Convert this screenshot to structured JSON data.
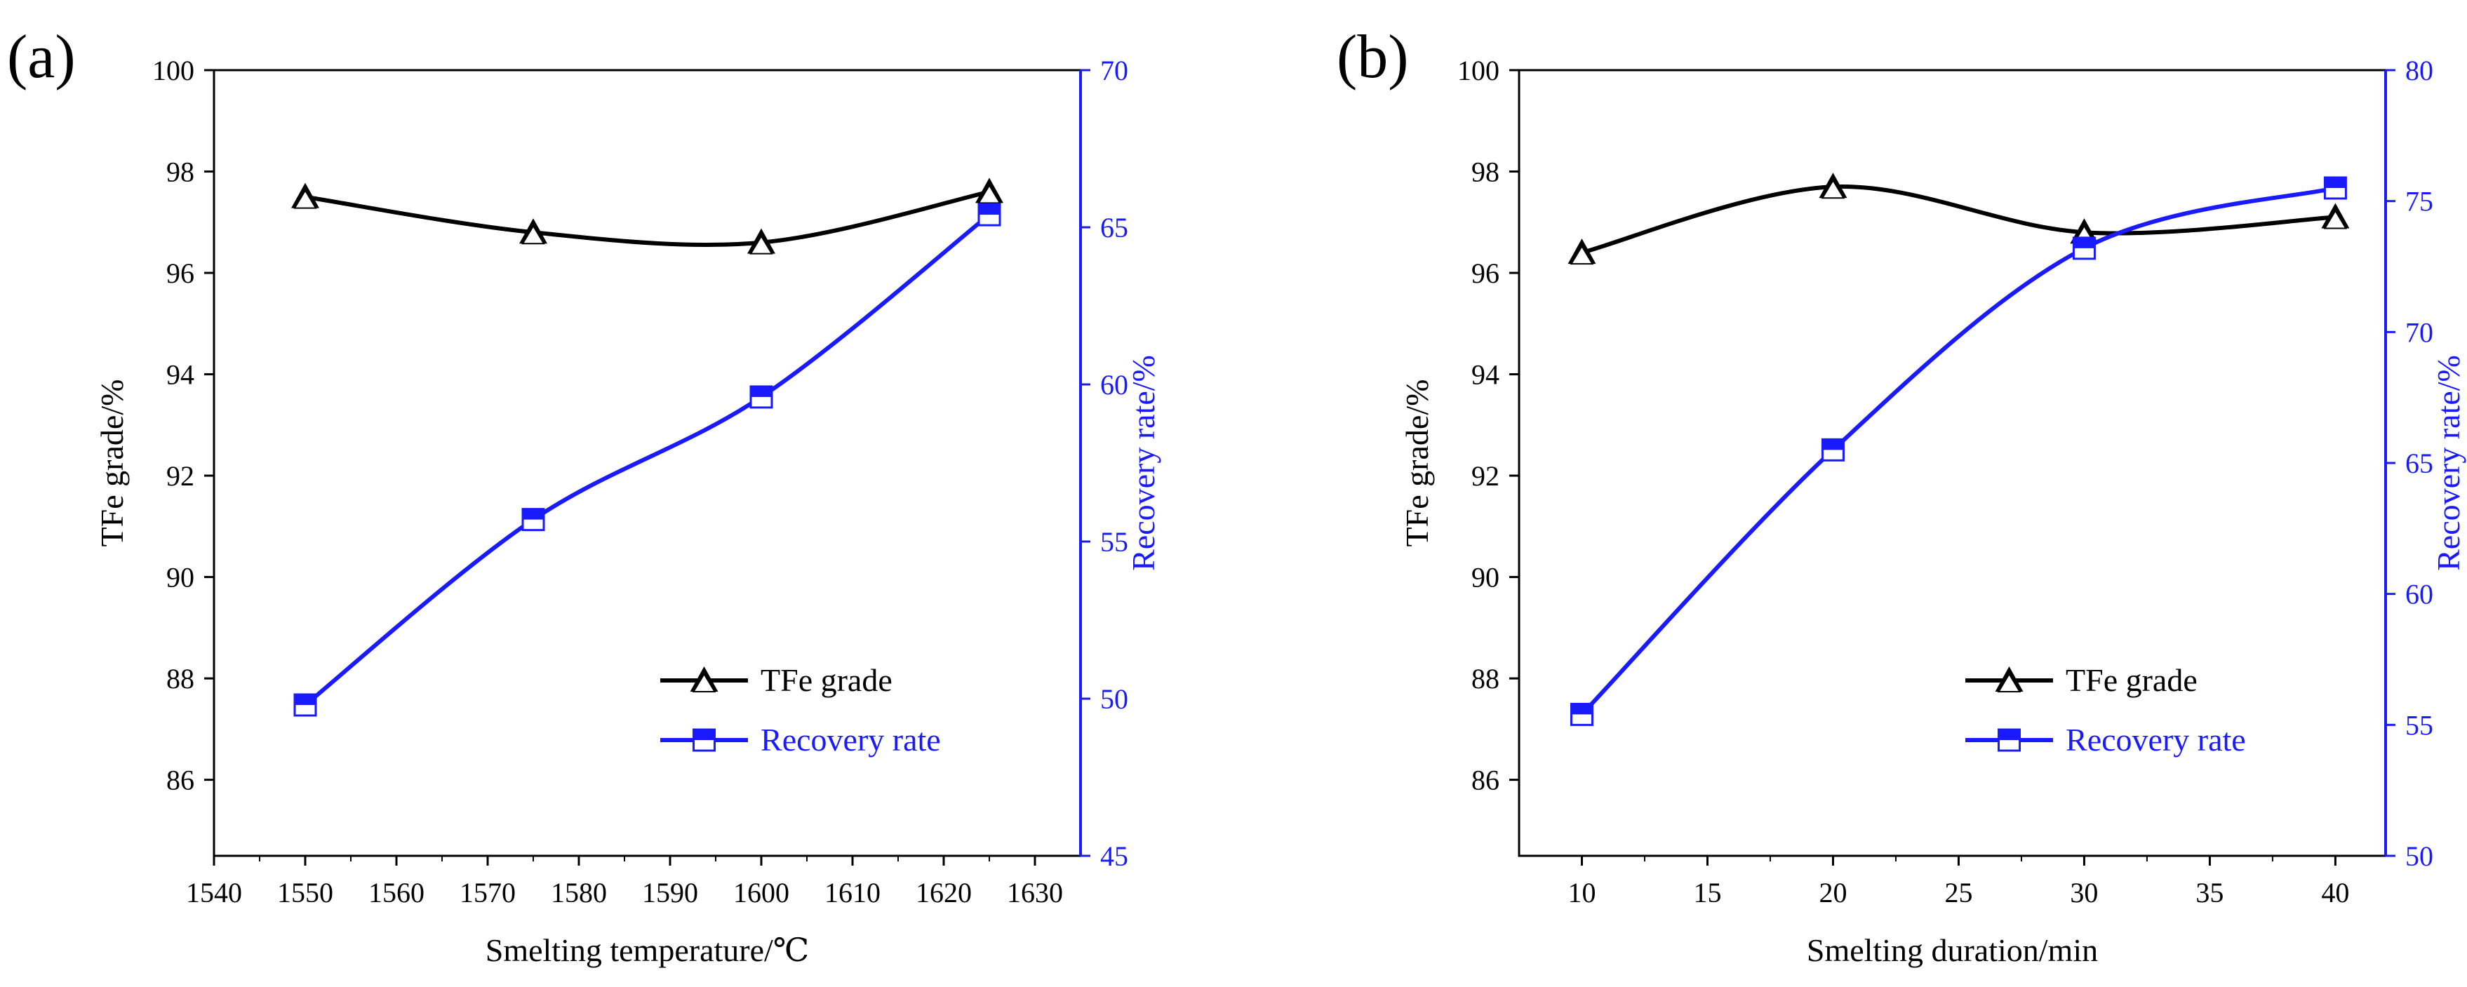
{
  "colors": {
    "grade": "#000000",
    "recovery": "#1a1aff",
    "axis": "#000000"
  },
  "chart_data": [
    {
      "type": "line",
      "panel_label": "(a)",
      "xlabel": "Smelting temperature/℃",
      "ylabel": "TFe grade/%",
      "ylabel_right": "Recovery rate/%",
      "xlim": [
        1540,
        1635
      ],
      "ylim": [
        84.5,
        100
      ],
      "ylim_right": [
        45,
        70
      ],
      "x_ticks": [
        1540,
        1550,
        1560,
        1570,
        1580,
        1590,
        1600,
        1610,
        1620,
        1630
      ],
      "x_tick_labels": [
        "1540",
        "1550",
        "1560",
        "1570",
        "1580",
        "1590",
        "1600",
        "1610",
        "1620",
        "1630"
      ],
      "y_ticks": [
        86,
        88,
        90,
        92,
        94,
        96,
        98,
        100
      ],
      "y_tick_labels": [
        "86",
        "88",
        "90",
        "92",
        "94",
        "96",
        "98",
        "100"
      ],
      "y_ticks_right": [
        45,
        50,
        55,
        60,
        65,
        70
      ],
      "y_tick_labels_right": [
        "45",
        "50",
        "55",
        "60",
        "65",
        "70"
      ],
      "grid": false,
      "legend_position": "bottom-right",
      "series": [
        {
          "name": "TFe grade",
          "axis": "left",
          "marker": "triangle",
          "x": [
            1550,
            1575,
            1600,
            1625
          ],
          "values": [
            97.5,
            96.8,
            96.6,
            97.6
          ]
        },
        {
          "name": "Recovery rate",
          "axis": "right",
          "marker": "square",
          "x": [
            1550,
            1575,
            1600,
            1625
          ],
          "values": [
            49.8,
            55.7,
            59.6,
            65.4
          ]
        }
      ]
    },
    {
      "type": "line",
      "panel_label": "(b)",
      "xlabel": "Smelting duration/min",
      "ylabel": "TFe grade/%",
      "ylabel_right": "Recovery rate/%",
      "xlim": [
        7.5,
        42
      ],
      "ylim": [
        84.5,
        100
      ],
      "ylim_right": [
        50,
        80
      ],
      "x_ticks": [
        10,
        15,
        20,
        25,
        30,
        35,
        40
      ],
      "x_tick_labels": [
        "10",
        "15",
        "20",
        "25",
        "30",
        "35",
        "40"
      ],
      "y_ticks": [
        86,
        88,
        90,
        92,
        94,
        96,
        98,
        100
      ],
      "y_tick_labels": [
        "86",
        "88",
        "90",
        "92",
        "94",
        "96",
        "98",
        "100"
      ],
      "y_ticks_right": [
        50,
        55,
        60,
        65,
        70,
        75,
        80
      ],
      "y_tick_labels_right": [
        "50",
        "55",
        "60",
        "65",
        "70",
        "75",
        "80"
      ],
      "grid": false,
      "legend_position": "bottom-right",
      "series": [
        {
          "name": "TFe grade",
          "axis": "left",
          "marker": "triangle",
          "x": [
            10,
            20,
            30,
            40
          ],
          "values": [
            96.4,
            97.7,
            96.8,
            97.1
          ]
        },
        {
          "name": "Recovery rate",
          "axis": "right",
          "marker": "square",
          "x": [
            10,
            20,
            30,
            40
          ],
          "values": [
            55.4,
            65.5,
            73.2,
            75.5
          ]
        }
      ]
    }
  ]
}
